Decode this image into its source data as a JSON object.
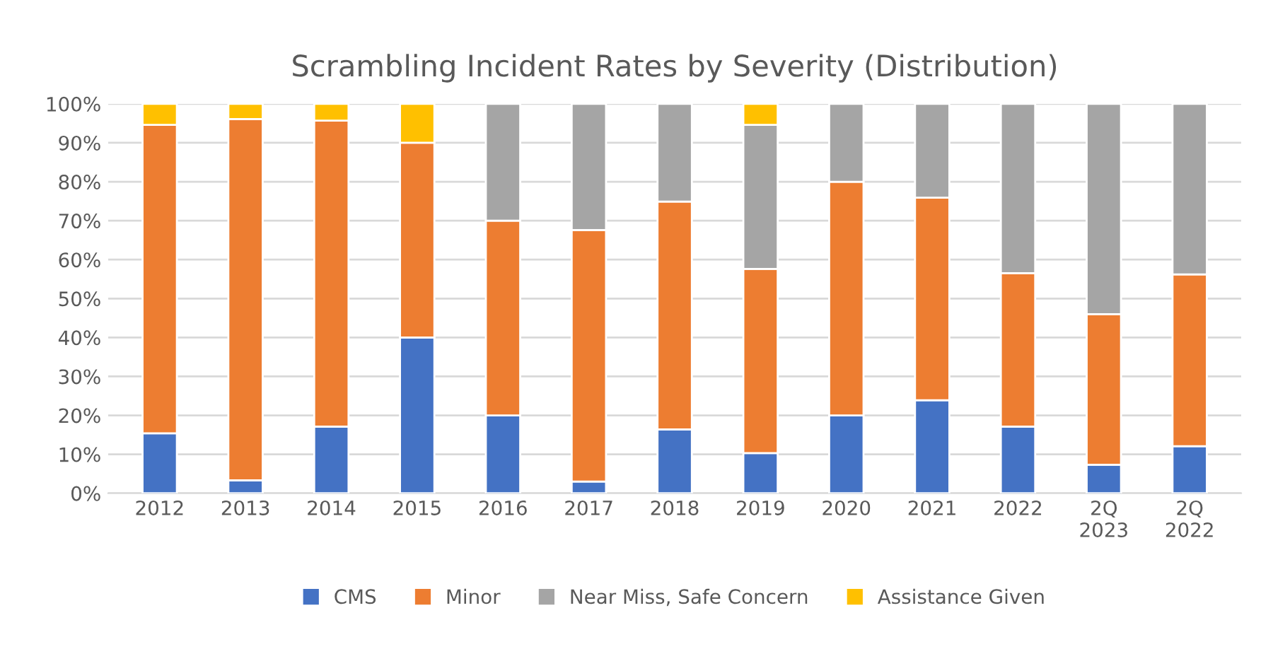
{
  "chart_data": {
    "type": "bar",
    "title": "Scrambling Incident Rates by Severity (Distribution)",
    "stacked": true,
    "categories": [
      "2012",
      "2013",
      "2014",
      "2015",
      "2016",
      "2017",
      "2018",
      "2019",
      "2020",
      "2021",
      "2022",
      "2Q\n2023",
      "2Q\n2022"
    ],
    "series": [
      {
        "name": "CMS",
        "color": "#4472c4",
        "values": [
          15.4,
          3.3,
          17.1,
          40,
          20,
          3,
          16.4,
          10.3,
          20,
          23.9,
          17.1,
          7.3,
          12.1
        ]
      },
      {
        "name": "Minor",
        "color": "#ed7d31",
        "values": [
          79.2,
          92.8,
          78.6,
          50,
          50,
          64.6,
          58.5,
          47.3,
          60,
          52,
          39.4,
          38.7,
          44.1
        ]
      },
      {
        "name": "Near Miss, Safe Concern",
        "color": "#a5a5a5",
        "values": [
          null,
          null,
          null,
          null,
          30,
          32.4,
          25.1,
          37,
          20,
          24.1,
          43.5,
          54,
          43.8
        ]
      },
      {
        "name": "Assistance Given",
        "color": "#ffc000",
        "values": [
          5.4,
          3.9,
          4.3,
          10,
          null,
          null,
          null,
          5.4,
          null,
          null,
          null,
          null,
          null
        ]
      }
    ],
    "ylim": [
      0,
      100
    ],
    "yticks": [
      {
        "value": 0,
        "label": "0%"
      },
      {
        "value": 10,
        "label": "10%"
      },
      {
        "value": 20,
        "label": "20%"
      },
      {
        "value": 30,
        "label": "30%"
      },
      {
        "value": 40,
        "label": "40%"
      },
      {
        "value": 50,
        "label": "50%"
      },
      {
        "value": 60,
        "label": "60%"
      },
      {
        "value": 70,
        "label": "70%"
      },
      {
        "value": 80,
        "label": "80%"
      },
      {
        "value": 90,
        "label": "90%"
      },
      {
        "value": 100,
        "label": "100%"
      }
    ],
    "grid": "y",
    "legend": "bottom"
  }
}
